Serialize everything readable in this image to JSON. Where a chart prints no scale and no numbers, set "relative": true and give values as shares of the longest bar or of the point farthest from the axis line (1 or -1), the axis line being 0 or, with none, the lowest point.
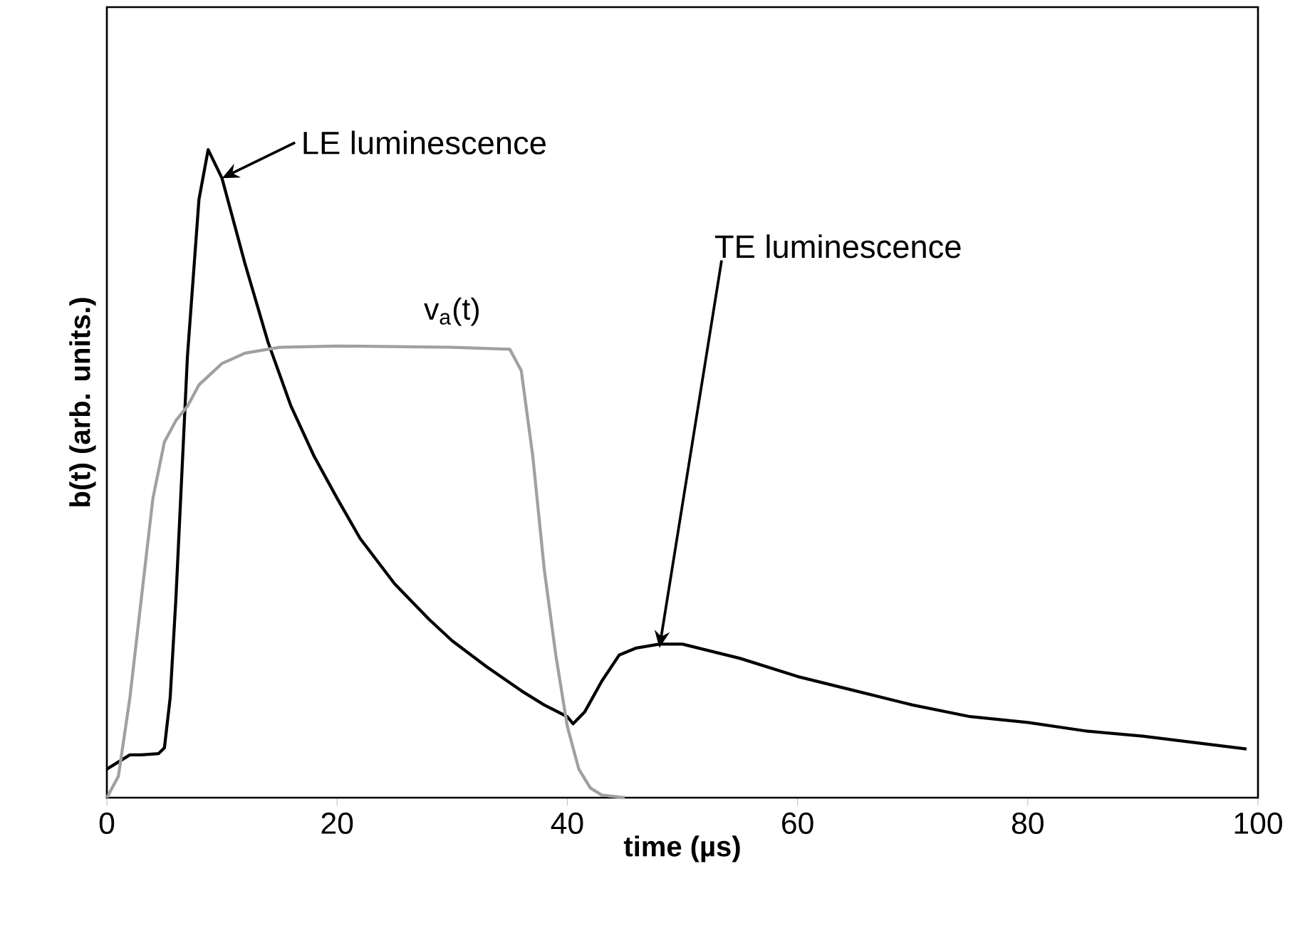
{
  "chart_data": {
    "type": "line",
    "relative": true,
    "xlabel": "time (µs)",
    "ylabel": "b(t) (arb. units.)",
    "xlim": [
      0,
      100
    ],
    "xticks": [
      0,
      20,
      40,
      60,
      80,
      100
    ],
    "series": [
      {
        "color": "#000000",
        "x": [
          0,
          1,
          2,
          3,
          4.5,
          5,
          5.5,
          6,
          7,
          8,
          8.8,
          10,
          12,
          14,
          16,
          18,
          20,
          22,
          25,
          28,
          30,
          33,
          36,
          38,
          40,
          40.5,
          41.5,
          43,
          44.5,
          46,
          48,
          50,
          55,
          60,
          65,
          70,
          75,
          80,
          85,
          90,
          95,
          99
        ],
        "values": [
          0.044,
          0.055,
          0.066,
          0.066,
          0.068,
          0.077,
          0.154,
          0.308,
          0.681,
          0.923,
          1.0,
          0.956,
          0.824,
          0.703,
          0.604,
          0.527,
          0.462,
          0.4,
          0.33,
          0.275,
          0.242,
          0.202,
          0.165,
          0.143,
          0.125,
          0.114,
          0.132,
          0.18,
          0.22,
          0.231,
          0.237,
          0.237,
          0.215,
          0.187,
          0.165,
          0.143,
          0.125,
          0.116,
          0.103,
          0.095,
          0.084,
          0.075
        ]
      },
      {
        "name": "v$_{a}$(t)",
        "color": "#a0a0a0",
        "x": [
          0,
          1,
          2,
          3,
          4,
          5,
          6,
          7,
          8,
          10,
          12,
          15,
          20,
          30,
          35,
          36,
          37,
          38,
          39,
          40,
          41,
          42,
          43,
          45
        ],
        "values": [
          0,
          0.033,
          0.154,
          0.308,
          0.462,
          0.549,
          0.582,
          0.604,
          0.637,
          0.67,
          0.686,
          0.695,
          0.697,
          0.695,
          0.692,
          0.659,
          0.527,
          0.352,
          0.22,
          0.11,
          0.044,
          0.015,
          0.004,
          0
        ]
      }
    ],
    "annotations": [
      {
        "text": "LE luminescence",
        "x": 10,
        "y": 0.956
      },
      {
        "text": "TE luminescence",
        "x": 48,
        "y": 0.231
      }
    ]
  }
}
